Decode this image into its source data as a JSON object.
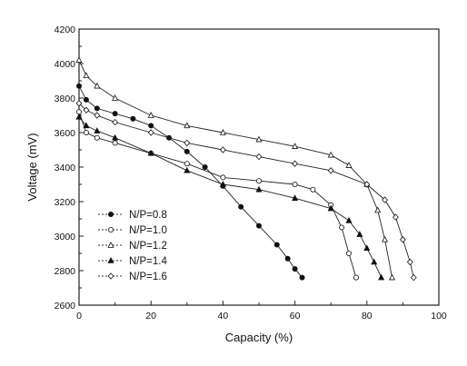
{
  "chart_data": {
    "type": "scatter",
    "xlabel": "Capacity (%)",
    "ylabel": "Voltage (mV)",
    "xlim": [
      0,
      100
    ],
    "ylim": [
      2600,
      4200
    ],
    "xticks": [
      0,
      20,
      40,
      60,
      80,
      100
    ],
    "yticks": [
      2600,
      2800,
      3000,
      3200,
      3400,
      3600,
      3800,
      4000,
      4200
    ],
    "grid": false,
    "legend_position": "bottom-left",
    "series": [
      {
        "name": "N/P=0.8",
        "marker": "filled-circle",
        "x": [
          0,
          2,
          5,
          10,
          15,
          20,
          25,
          30,
          35,
          40,
          45,
          50,
          55,
          58,
          60,
          62
        ],
        "y": [
          3870,
          3790,
          3740,
          3710,
          3680,
          3640,
          3570,
          3490,
          3400,
          3290,
          3170,
          3060,
          2950,
          2870,
          2810,
          2760
        ]
      },
      {
        "name": "N/P=1.0",
        "marker": "open-circle",
        "x": [
          0,
          2,
          5,
          10,
          20,
          30,
          40,
          50,
          60,
          65,
          70,
          73,
          75,
          77
        ],
        "y": [
          3720,
          3600,
          3570,
          3540,
          3480,
          3420,
          3340,
          3320,
          3300,
          3270,
          3180,
          3050,
          2900,
          2760
        ]
      },
      {
        "name": "N/P=1.2",
        "marker": "open-triangle",
        "x": [
          0,
          2,
          5,
          10,
          20,
          30,
          40,
          50,
          60,
          70,
          75,
          80,
          83,
          85,
          87
        ],
        "y": [
          4020,
          3930,
          3870,
          3800,
          3700,
          3640,
          3600,
          3560,
          3520,
          3470,
          3410,
          3300,
          3150,
          2980,
          2760
        ]
      },
      {
        "name": "N/P=1.4",
        "marker": "filled-triangle",
        "x": [
          0,
          2,
          5,
          10,
          20,
          30,
          40,
          50,
          60,
          70,
          75,
          78,
          80,
          82,
          84
        ],
        "y": [
          3690,
          3640,
          3610,
          3570,
          3480,
          3380,
          3300,
          3270,
          3220,
          3160,
          3090,
          3010,
          2930,
          2850,
          2760
        ]
      },
      {
        "name": "N/P=1.6",
        "marker": "open-diamond",
        "x": [
          0,
          2,
          5,
          10,
          20,
          30,
          40,
          50,
          60,
          70,
          80,
          85,
          88,
          90,
          92,
          93
        ],
        "y": [
          3770,
          3730,
          3700,
          3660,
          3600,
          3540,
          3500,
          3460,
          3420,
          3380,
          3300,
          3210,
          3110,
          2980,
          2850,
          2760
        ]
      }
    ]
  }
}
